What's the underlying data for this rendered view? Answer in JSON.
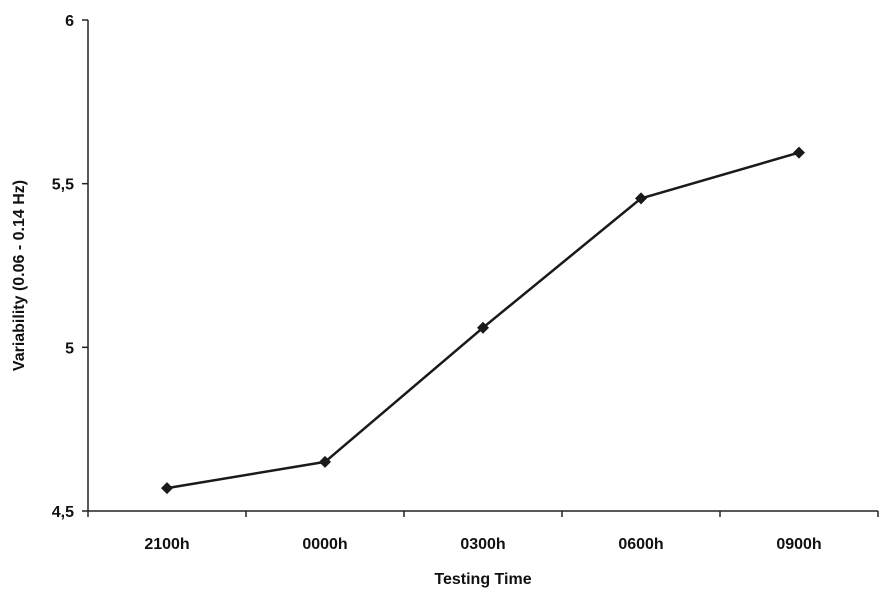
{
  "chart_data": {
    "type": "line",
    "title": "",
    "xlabel": "Testing Time",
    "ylabel": "Variability (0.06 - 0.14 Hz)",
    "categories": [
      "2100h",
      "0000h",
      "0300h",
      "0600h",
      "0900h"
    ],
    "series": [
      {
        "values": [
          4.57,
          4.65,
          5.06,
          5.455,
          5.595
        ]
      }
    ],
    "ylim": [
      4.5,
      6
    ],
    "yticks": [
      "4,5",
      "5",
      "5,5",
      "6"
    ],
    "ytick_values": [
      4.5,
      5,
      5.5,
      6
    ],
    "grid": false,
    "legend": "none",
    "colors": {
      "line": "#1a1a1a",
      "marker": "#1a1a1a",
      "axis": "#222222",
      "text": "#111111"
    },
    "marker": "diamond"
  }
}
